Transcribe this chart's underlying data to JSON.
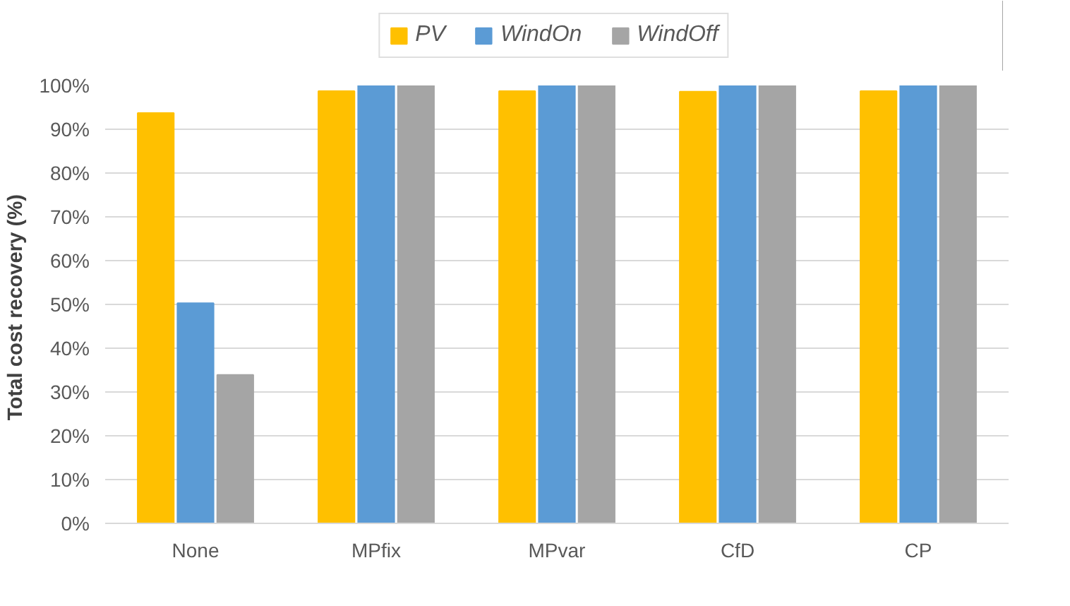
{
  "chart_data": {
    "type": "bar",
    "ylabel": "Total cost  recovery (%)",
    "categories": [
      "None",
      "MPfix",
      "MPvar",
      "CfD",
      "CP"
    ],
    "series": [
      {
        "name": "PV",
        "color": "#ffc000",
        "values": [
          93.7,
          98.7,
          98.7,
          98.6,
          98.7
        ]
      },
      {
        "name": "WindOn",
        "color": "#5b9bd5",
        "values": [
          50.3,
          100,
          100,
          100,
          100
        ]
      },
      {
        "name": "WindOff",
        "color": "#a5a5a5",
        "values": [
          33.9,
          100,
          100,
          100,
          100
        ]
      }
    ],
    "ylim": [
      0,
      100
    ],
    "yticks": [
      {
        "value": 0,
        "label": "0%"
      },
      {
        "value": 10,
        "label": "10%"
      },
      {
        "value": 20,
        "label": "20%"
      },
      {
        "value": 30,
        "label": "30%"
      },
      {
        "value": 40,
        "label": "40%"
      },
      {
        "value": 50,
        "label": "50%"
      },
      {
        "value": 60,
        "label": "60%"
      },
      {
        "value": 70,
        "label": "70%"
      },
      {
        "value": 80,
        "label": "80%"
      },
      {
        "value": 90,
        "label": "90%"
      },
      {
        "value": 100,
        "label": "100%"
      }
    ],
    "grid": "y",
    "legend": "top"
  }
}
